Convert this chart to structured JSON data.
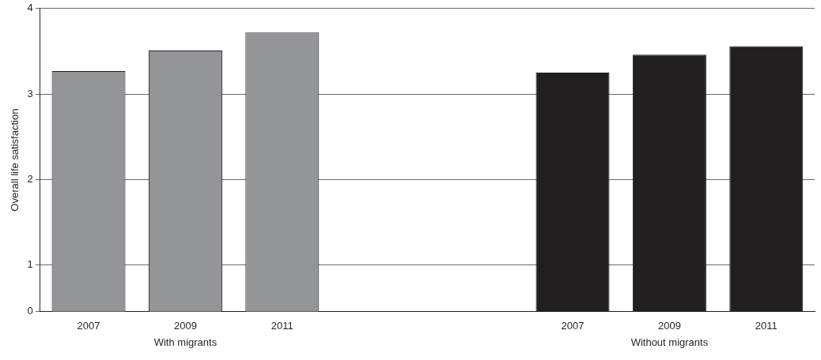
{
  "chart_data": {
    "type": "bar",
    "ylabel": "Overall life satisfaction",
    "categories": [
      "2007",
      "2009",
      "2011",
      null,
      null,
      "2007",
      "2009",
      "2011"
    ],
    "series": [
      {
        "name": "With migrants",
        "color": "#939598",
        "values": [
          3.27,
          3.51,
          3.72,
          null,
          null,
          null,
          null,
          null
        ]
      },
      {
        "name": "Without migrants",
        "color": "#231f20",
        "values": [
          null,
          null,
          null,
          null,
          null,
          3.25,
          3.46,
          3.56
        ]
      }
    ],
    "ylim": [
      0.46,
      4
    ],
    "yticks": [
      {
        "value": 0.46,
        "label": "0"
      },
      1,
      2,
      3,
      4
    ],
    "grid": "y",
    "legend": false
  }
}
